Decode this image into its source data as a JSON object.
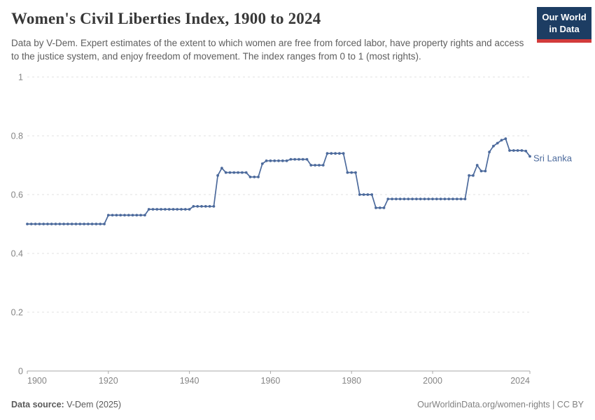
{
  "header": {
    "title": "Women's Civil Liberties Index, 1900 to 2024",
    "subtitle": "Data by V-Dem. Expert estimates of the extent to which women are free from forced labor, have property rights and access to the justice system, and enjoy freedom of movement. The index ranges from 0 to 1 (most rights).",
    "logo": {
      "line1": "Our World",
      "line2": "in Data",
      "bg_color": "#1d3d63",
      "accent_color": "#d23b3b"
    }
  },
  "chart_data": {
    "type": "line",
    "title": "Women's Civil Liberties Index, 1900 to 2024",
    "entity": "Sri Lanka",
    "line_color": "#4c6a9c",
    "grid": "dashed-horizontal",
    "legend_position": "end-of-line",
    "xlim": [
      1900,
      2024
    ],
    "ylim": [
      0,
      1
    ],
    "x_ticks": [
      1900,
      1920,
      1940,
      1960,
      1980,
      2000,
      2024
    ],
    "y_ticks": [
      0,
      0.2,
      0.4,
      0.6,
      0.8,
      1
    ],
    "y_tick_labels": [
      "0",
      "0.2",
      "0.4",
      "0.6",
      "0.8",
      "1"
    ],
    "x_start": 1900,
    "x_step": 1,
    "values": [
      0.5,
      0.5,
      0.5,
      0.5,
      0.5,
      0.5,
      0.5,
      0.5,
      0.5,
      0.5,
      0.5,
      0.5,
      0.5,
      0.5,
      0.5,
      0.5,
      0.5,
      0.5,
      0.5,
      0.5,
      0.53,
      0.53,
      0.53,
      0.53,
      0.53,
      0.53,
      0.53,
      0.53,
      0.53,
      0.53,
      0.55,
      0.55,
      0.55,
      0.55,
      0.55,
      0.55,
      0.55,
      0.55,
      0.55,
      0.55,
      0.55,
      0.56,
      0.56,
      0.56,
      0.56,
      0.56,
      0.56,
      0.665,
      0.69,
      0.675,
      0.675,
      0.675,
      0.675,
      0.675,
      0.675,
      0.66,
      0.66,
      0.66,
      0.705,
      0.715,
      0.715,
      0.715,
      0.715,
      0.715,
      0.715,
      0.72,
      0.72,
      0.72,
      0.72,
      0.72,
      0.7,
      0.7,
      0.7,
      0.7,
      0.74,
      0.74,
      0.74,
      0.74,
      0.74,
      0.675,
      0.675,
      0.675,
      0.6,
      0.6,
      0.6,
      0.6,
      0.555,
      0.555,
      0.555,
      0.585,
      0.585,
      0.585,
      0.585,
      0.585,
      0.585,
      0.585,
      0.585,
      0.585,
      0.585,
      0.585,
      0.585,
      0.585,
      0.585,
      0.585,
      0.585,
      0.585,
      0.585,
      0.585,
      0.585,
      0.665,
      0.665,
      0.7,
      0.68,
      0.68,
      0.745,
      0.765,
      0.775,
      0.785,
      0.79,
      0.75,
      0.75,
      0.75,
      0.75,
      0.748,
      0.73
    ]
  },
  "footer": {
    "source_label": "Data source:",
    "source_value": " V-Dem (2025)",
    "credit": "OurWorldinData.org/women-rights | CC BY"
  }
}
